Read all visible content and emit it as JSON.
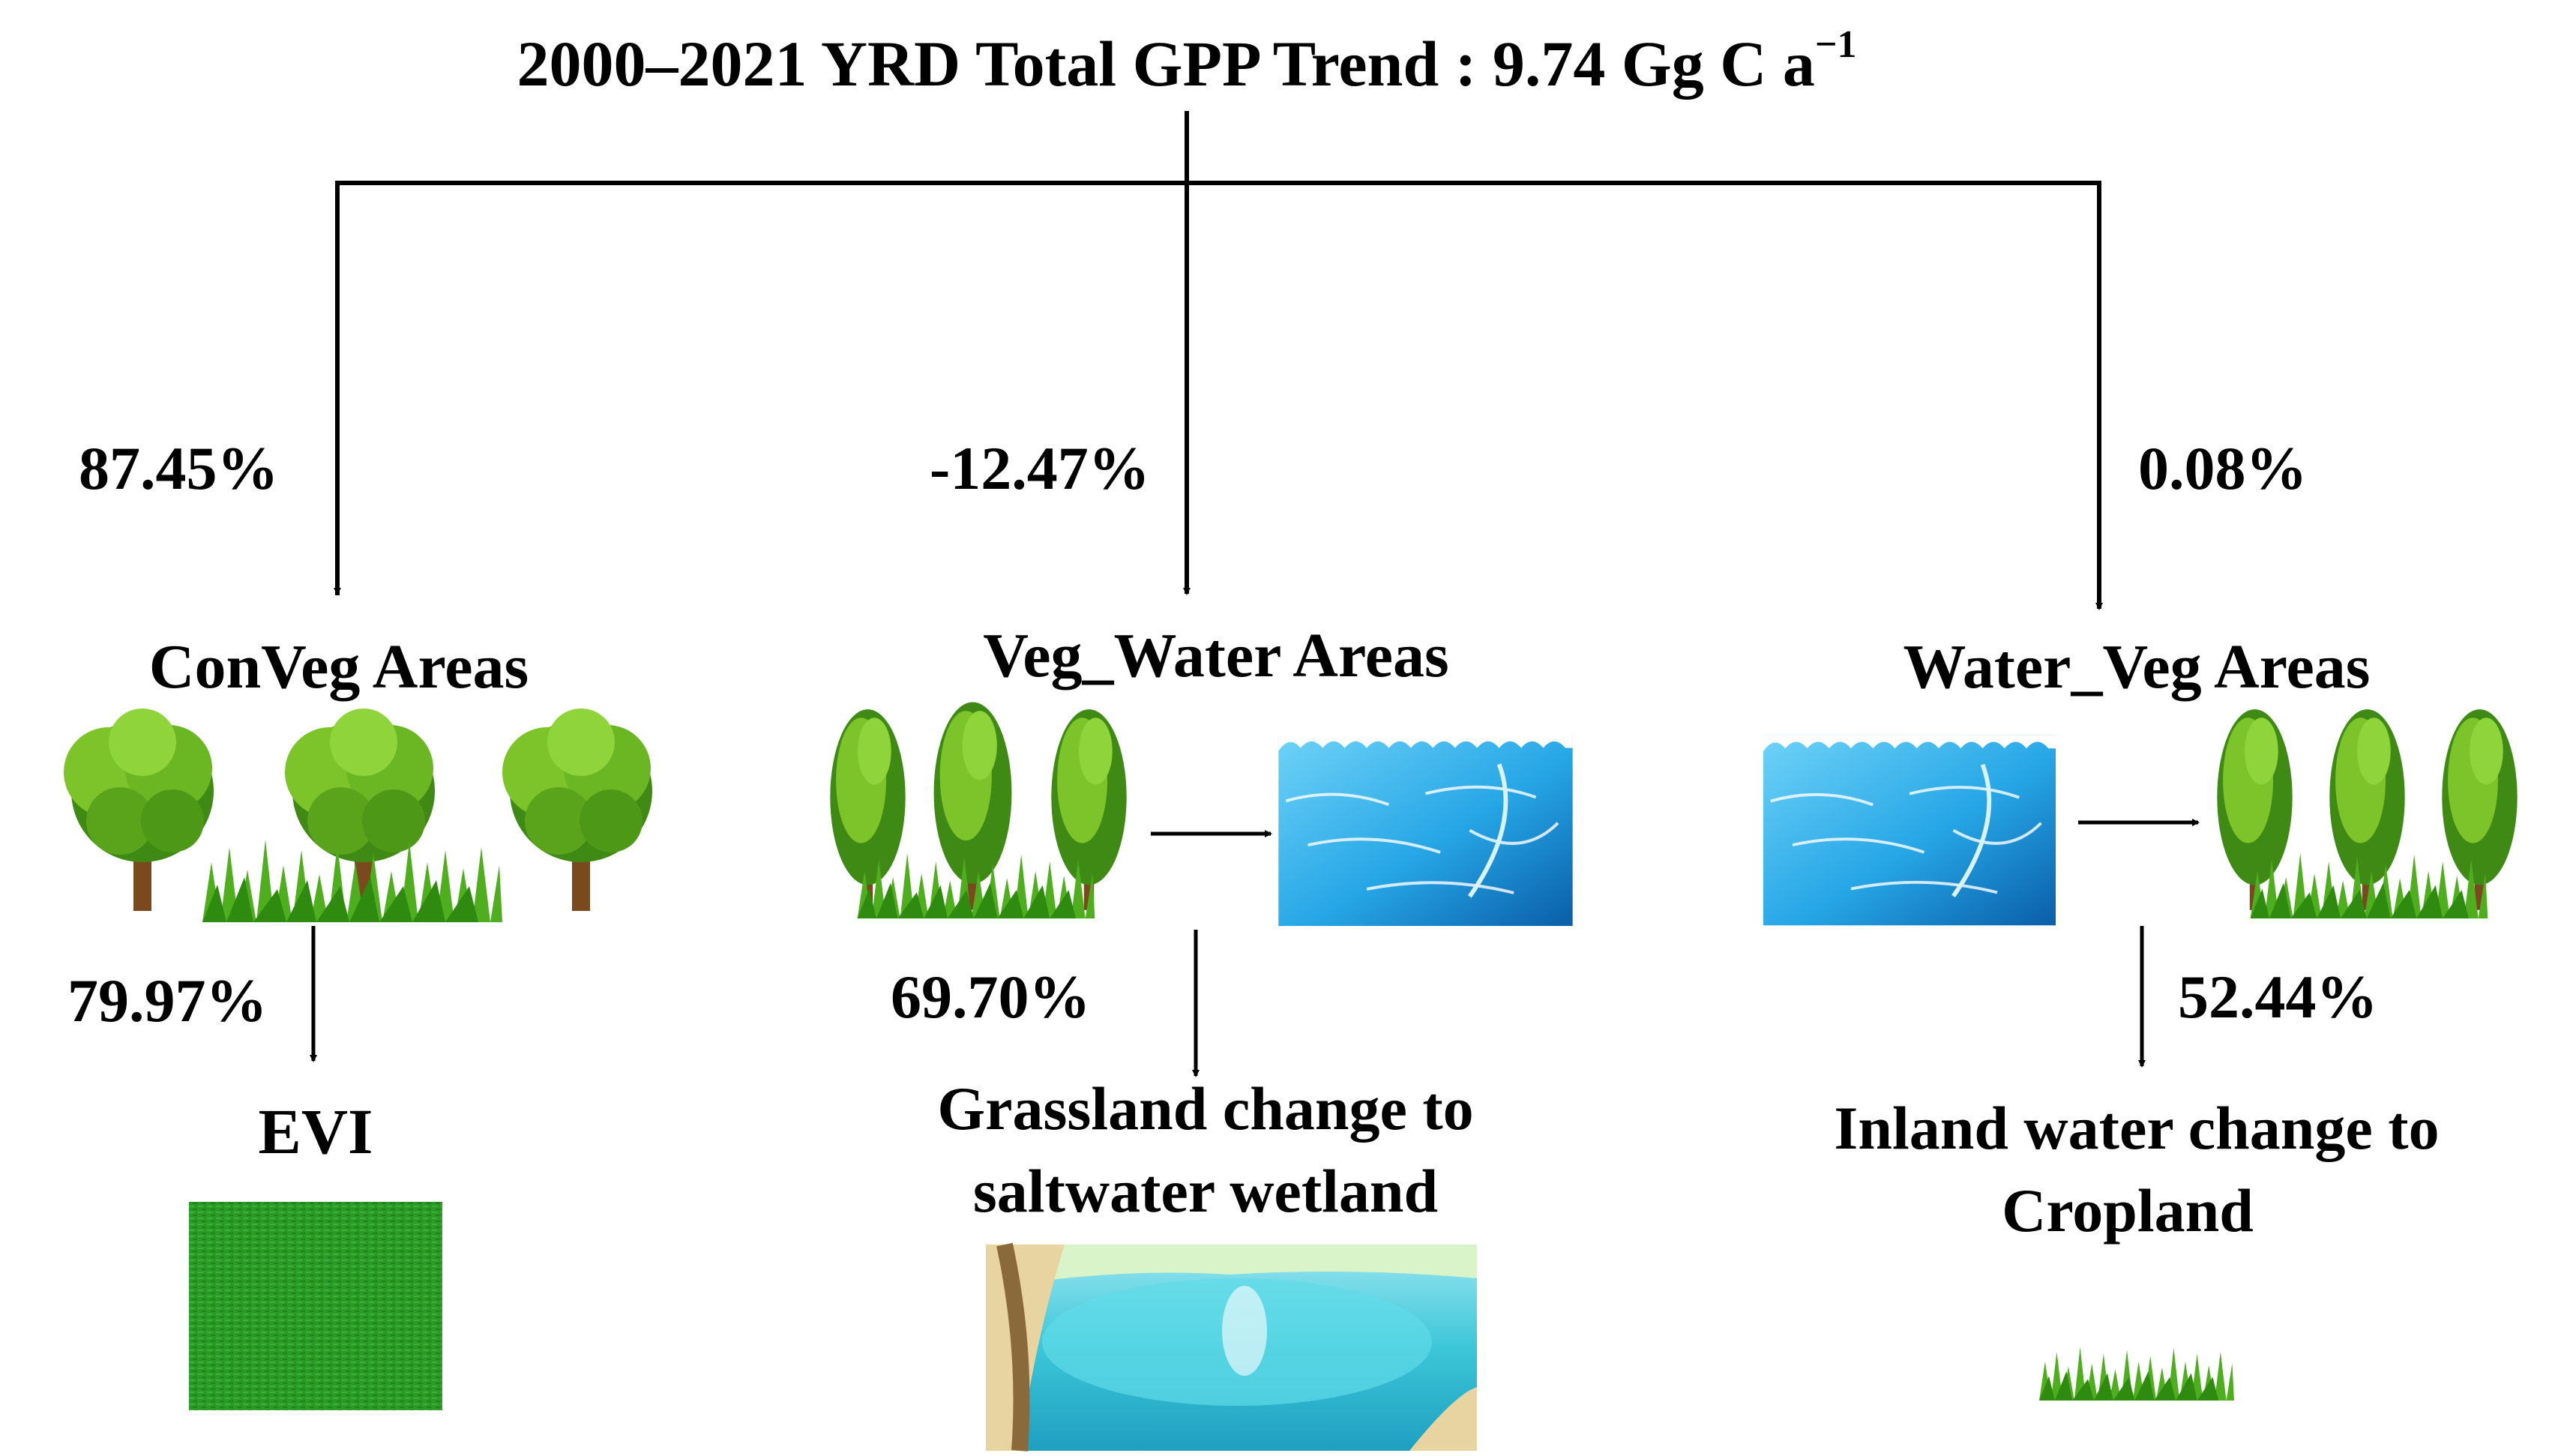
{
  "diagram": {
    "title": {
      "text": "2000–2021 YRD Total GPP Trend : 9.74 Gg C a",
      "superscript": "−1"
    },
    "branches": [
      {
        "percent": "87.45%",
        "area": "ConVeg Areas",
        "sub_percent": "79.97%",
        "driver": [
          "EVI"
        ],
        "images": [
          "tree-icons",
          "evi-texture"
        ]
      },
      {
        "percent": "-12.47%",
        "area": "Veg_Water Areas",
        "sub_percent": "69.70%",
        "driver": [
          "Grassland change to",
          "saltwater wetland"
        ],
        "images": [
          "tree-icons",
          "water-texture",
          "lagoon-scene"
        ]
      },
      {
        "percent": "0.08%",
        "area": "Water_Veg Areas",
        "sub_percent": "52.44%",
        "driver": [
          "Inland water change to",
          "Cropland"
        ],
        "images": [
          "water-texture",
          "tree-icons",
          "grass-strip"
        ]
      }
    ],
    "colors": {
      "line": "#000000",
      "tree_light": "#7cc42a",
      "tree_dark": "#3f8a14",
      "trunk": "#7a4a1e",
      "water_light": "#4cc4f2",
      "water_dark": "#0a5ea8",
      "grass": "#4fae1d"
    }
  }
}
